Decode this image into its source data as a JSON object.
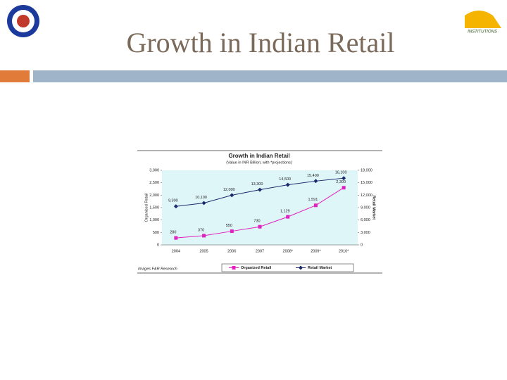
{
  "slide": {
    "title": "Growth in Indian Retail",
    "logo_text": "INSTITUTIONS"
  },
  "chart_data": {
    "type": "line",
    "title": "Growth in Indian Retail",
    "subtitle": "(Value in INR Billion; with *projections)",
    "categories": [
      "2004",
      "2005",
      "2006",
      "2007",
      "2008*",
      "2009*",
      "2010*"
    ],
    "ylabel": "Organised Retail",
    "y2label": "Retail Market",
    "ylim": [
      0,
      3000
    ],
    "yticks": [
      0,
      500,
      {
        "value": 1000,
        "label": "1,000"
      },
      {
        "value": 1500,
        "label": "1,500"
      },
      {
        "value": 2000,
        "label": "2,000"
      },
      {
        "value": 2500,
        "label": "2,500"
      },
      {
        "value": 3000,
        "label": "3,000"
      }
    ],
    "y2lim": [
      0,
      18000
    ],
    "y2ticks": [
      0,
      {
        "value": 3000,
        "label": "3,000"
      },
      {
        "value": 6000,
        "label": "6,000"
      },
      {
        "value": 9000,
        "label": "9,000"
      },
      {
        "value": 12000,
        "label": "12,000"
      },
      {
        "value": 15000,
        "label": "15,000"
      },
      {
        "value": 18000,
        "label": "18,000"
      }
    ],
    "series": [
      {
        "name": "Organized Retail",
        "color": "#e020c0",
        "marker": "square",
        "values": [
          280,
          370,
          550,
          730,
          1129,
          1591,
          2300
        ],
        "value_labels": [
          "280",
          "370",
          "550",
          "730",
          "1,129",
          "1,591",
          "2,300"
        ]
      },
      {
        "name": "Retail Market",
        "color": "#1a2a6c",
        "marker": "diamond",
        "axis": "y2",
        "values": [
          9300,
          10100,
          12000,
          13300,
          14500,
          15400,
          16100
        ],
        "value_labels": [
          "9,300",
          "10,100",
          "12,000",
          "13,300",
          "14,500",
          "15,400",
          "16,100"
        ]
      }
    ],
    "source": "Images F&R Research",
    "grid": false
  }
}
